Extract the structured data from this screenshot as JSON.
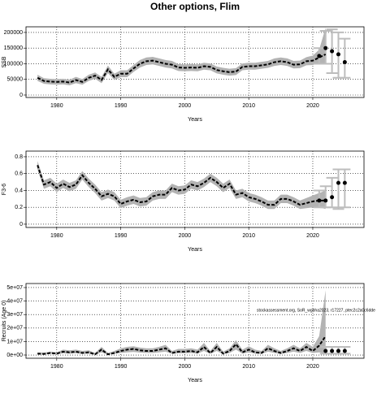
{
  "chart_data": [
    {
      "type": "line",
      "title": "Other options, Flim",
      "xlabel": "Years",
      "ylabel": "SSB",
      "xlim": [
        1975.2,
        2028
      ],
      "xticks": [
        1980,
        1990,
        2000,
        2010,
        2020
      ],
      "ylim": [
        -7800,
        218000
      ],
      "yticks": [
        0,
        50000,
        100000,
        150000,
        200000
      ],
      "grid": true,
      "x": [
        1977,
        1978,
        1979,
        1980,
        1981,
        1982,
        1983,
        1984,
        1985,
        1986,
        1987,
        1988,
        1989,
        1990,
        1991,
        1992,
        1993,
        1994,
        1995,
        1996,
        1997,
        1998,
        1999,
        2000,
        2001,
        2002,
        2003,
        2004,
        2005,
        2006,
        2007,
        2008,
        2009,
        2010,
        2011,
        2012,
        2013,
        2014,
        2015,
        2016,
        2017,
        2018,
        2019,
        2020,
        2021,
        2022
      ],
      "values": [
        55000,
        45000,
        43000,
        42000,
        43000,
        40000,
        48000,
        42000,
        55000,
        62000,
        48000,
        82000,
        58000,
        68000,
        68000,
        85000,
        100000,
        108000,
        110000,
        105000,
        100000,
        97000,
        88000,
        87000,
        88000,
        87000,
        92000,
        90000,
        80000,
        76000,
        73000,
        75000,
        90000,
        92000,
        92000,
        95000,
        98000,
        105000,
        108000,
        105000,
        97000,
        98000,
        108000,
        110000,
        120000,
        130000
      ],
      "band_low": [
        45000,
        36000,
        34000,
        33000,
        34000,
        31000,
        38000,
        33000,
        45000,
        52000,
        38000,
        70000,
        48000,
        57000,
        57000,
        74000,
        88000,
        96000,
        98000,
        93000,
        88000,
        85000,
        77000,
        76000,
        77000,
        76000,
        81000,
        79000,
        69000,
        65000,
        62000,
        64000,
        79000,
        81000,
        81000,
        84000,
        87000,
        93000,
        96000,
        93000,
        85000,
        86000,
        95000,
        96000,
        102000,
        100000
      ],
      "band_high": [
        65000,
        54000,
        52000,
        51000,
        52000,
        49000,
        58000,
        51000,
        65000,
        72000,
        58000,
        94000,
        68000,
        79000,
        79000,
        96000,
        112000,
        120000,
        122000,
        117000,
        112000,
        109000,
        99000,
        98000,
        99000,
        98000,
        103000,
        101000,
        91000,
        87000,
        84000,
        86000,
        101000,
        103000,
        103000,
        106000,
        109000,
        117000,
        120000,
        117000,
        109000,
        110000,
        121000,
        126000,
        145000,
        215000
      ],
      "points_x": [
        2021,
        2022,
        2023,
        2024,
        2025
      ],
      "points": [
        125000,
        150000,
        140000,
        130000,
        105000
      ],
      "err_low": [
        100000,
        100000,
        70000,
        55000,
        55000
      ],
      "err_high": [
        150000,
        205000,
        210000,
        200000,
        180000
      ]
    },
    {
      "type": "line",
      "xlabel": "Years",
      "ylabel": "F3-6",
      "xlim": [
        1975.2,
        2028
      ],
      "xticks": [
        1980,
        1990,
        2000,
        2010,
        2020
      ],
      "ylim": [
        -0.039,
        0.867
      ],
      "yticks": [
        0,
        0.2,
        0.4,
        0.6,
        0.8
      ],
      "grid": true,
      "x": [
        1977,
        1978,
        1979,
        1980,
        1981,
        1982,
        1983,
        1984,
        1985,
        1986,
        1987,
        1988,
        1989,
        1990,
        1991,
        1992,
        1993,
        1994,
        1995,
        1996,
        1997,
        1998,
        1999,
        2000,
        2001,
        2002,
        2003,
        2004,
        2005,
        2006,
        2007,
        2008,
        2009,
        2010,
        2011,
        2012,
        2013,
        2014,
        2015,
        2016,
        2017,
        2018,
        2019,
        2020,
        2021,
        2022
      ],
      "values": [
        0.7,
        0.47,
        0.5,
        0.43,
        0.48,
        0.44,
        0.47,
        0.58,
        0.49,
        0.42,
        0.33,
        0.36,
        0.33,
        0.24,
        0.27,
        0.29,
        0.26,
        0.27,
        0.33,
        0.35,
        0.35,
        0.43,
        0.4,
        0.41,
        0.47,
        0.45,
        0.49,
        0.55,
        0.5,
        0.43,
        0.48,
        0.35,
        0.37,
        0.32,
        0.3,
        0.27,
        0.23,
        0.23,
        0.3,
        0.3,
        0.27,
        0.23,
        0.25,
        0.27,
        0.28,
        0.28
      ],
      "band_low": [
        0.65,
        0.42,
        0.45,
        0.38,
        0.43,
        0.39,
        0.42,
        0.53,
        0.44,
        0.37,
        0.28,
        0.31,
        0.28,
        0.19,
        0.22,
        0.24,
        0.21,
        0.22,
        0.28,
        0.3,
        0.3,
        0.38,
        0.35,
        0.36,
        0.42,
        0.4,
        0.44,
        0.5,
        0.45,
        0.38,
        0.43,
        0.3,
        0.32,
        0.27,
        0.25,
        0.22,
        0.18,
        0.18,
        0.25,
        0.25,
        0.22,
        0.18,
        0.19,
        0.2,
        0.2,
        0.18
      ],
      "band_high": [
        0.75,
        0.52,
        0.55,
        0.48,
        0.53,
        0.49,
        0.52,
        0.63,
        0.54,
        0.47,
        0.38,
        0.41,
        0.38,
        0.29,
        0.32,
        0.34,
        0.31,
        0.32,
        0.38,
        0.4,
        0.4,
        0.48,
        0.45,
        0.46,
        0.52,
        0.5,
        0.54,
        0.6,
        0.55,
        0.48,
        0.53,
        0.4,
        0.42,
        0.37,
        0.35,
        0.32,
        0.28,
        0.28,
        0.35,
        0.35,
        0.32,
        0.28,
        0.31,
        0.34,
        0.37,
        0.4
      ],
      "points_x": [
        2021,
        2022,
        2023,
        2024,
        2025
      ],
      "points": [
        0.28,
        0.28,
        0.32,
        0.49,
        0.49
      ],
      "err_low": [
        0.2,
        0.2,
        0.2,
        0.18,
        0.2
      ],
      "err_high": [
        0.4,
        0.45,
        0.55,
        0.65,
        0.65
      ]
    },
    {
      "type": "line",
      "xlabel": "Years",
      "ylabel": "Recruits (Age 0)",
      "annotation": "stockassessment.org, SoR_wgbha2023, r17227, ptec2c2a0c6dde",
      "xlim": [
        1975.2,
        2028
      ],
      "xticks": [
        1980,
        1990,
        2000,
        2010,
        2020
      ],
      "ylim": [
        -2400000,
        53000000
      ],
      "yticks": [
        {
          "value": 0,
          "label": "0e+00"
        },
        {
          "value": 10000000,
          "label": "1e+07"
        },
        {
          "value": 20000000,
          "label": "2e+07"
        },
        {
          "value": 30000000,
          "label": "3e+07"
        },
        {
          "value": 40000000,
          "label": "4e+07"
        },
        {
          "value": 50000000,
          "label": "5e+07"
        }
      ],
      "grid": true,
      "x": [
        1977,
        1978,
        1979,
        1980,
        1981,
        1982,
        1983,
        1984,
        1985,
        1986,
        1987,
        1988,
        1989,
        1990,
        1991,
        1992,
        1993,
        1994,
        1995,
        1996,
        1997,
        1998,
        1999,
        2000,
        2001,
        2002,
        2003,
        2004,
        2005,
        2006,
        2007,
        2008,
        2009,
        2010,
        2011,
        2012,
        2013,
        2014,
        2015,
        2016,
        2017,
        2018,
        2019,
        2020,
        2021,
        2022
      ],
      "values": [
        1000000,
        800000,
        1500000,
        1000000,
        2500000,
        2000000,
        2500000,
        1500000,
        2000000,
        500000,
        4000000,
        500000,
        1500000,
        3000000,
        4000000,
        4500000,
        3500000,
        3000000,
        3000000,
        4000000,
        5000000,
        1500000,
        2500000,
        2500000,
        3000000,
        2000000,
        6000000,
        1500000,
        6000000,
        1000000,
        3000000,
        8000000,
        2000000,
        4000000,
        2000000,
        1500000,
        5000000,
        3000000,
        1500000,
        3000000,
        5000000,
        3000000,
        6000000,
        3000000,
        7000000,
        14000000
      ],
      "band_low": [
        500000,
        400000,
        800000,
        500000,
        1300000,
        1000000,
        1300000,
        800000,
        1000000,
        200000,
        2000000,
        200000,
        800000,
        1500000,
        2000000,
        2300000,
        1800000,
        1500000,
        1500000,
        2000000,
        2500000,
        800000,
        1300000,
        1300000,
        1500000,
        1000000,
        3000000,
        800000,
        3000000,
        500000,
        1500000,
        4000000,
        1000000,
        2000000,
        1000000,
        800000,
        2500000,
        1500000,
        800000,
        1500000,
        2500000,
        1500000,
        3000000,
        1500000,
        2000000,
        1000000
      ],
      "band_high": [
        2000000,
        1800000,
        2500000,
        2000000,
        4000000,
        3500000,
        4000000,
        3000000,
        3500000,
        1500000,
        6000000,
        1500000,
        3000000,
        5000000,
        6000000,
        6500000,
        5500000,
        5000000,
        5000000,
        6000000,
        7500000,
        3000000,
        4500000,
        4500000,
        5000000,
        4000000,
        9000000,
        3000000,
        9000000,
        2500000,
        5000000,
        11000000,
        4000000,
        6500000,
        4000000,
        3000000,
        7500000,
        5000000,
        3000000,
        5000000,
        7500000,
        5000000,
        9000000,
        6000000,
        14000000,
        48000000
      ],
      "points_x": [
        2022,
        2023,
        2024,
        2025
      ],
      "points": [
        3000000,
        3000000,
        3000000,
        3000000
      ],
      "err_low": [
        1000000,
        1000000,
        1000000,
        1000000
      ],
      "err_high": [
        6000000,
        6000000,
        6000000,
        6000000
      ]
    }
  ]
}
